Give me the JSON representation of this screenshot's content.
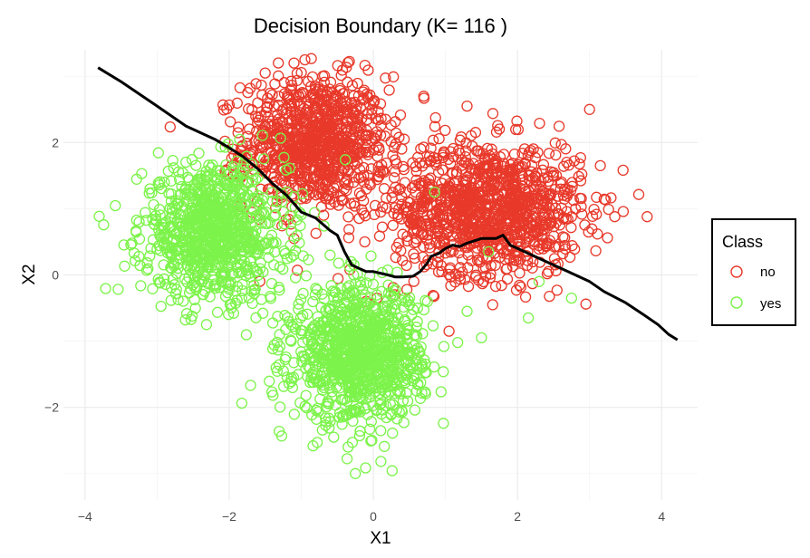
{
  "chart_data": {
    "type": "scatter",
    "title": "Decision Boundary (K= 116 )",
    "xlabel": "X1",
    "ylabel": "X2",
    "xlim": [
      -4.3,
      4.5
    ],
    "ylim": [
      -3.4,
      3.4
    ],
    "x_ticks": [
      -4,
      -2,
      0,
      2,
      4
    ],
    "y_ticks": [
      -2,
      0,
      2
    ],
    "x_tick_labels": [
      "−4",
      "−2",
      "0",
      "2",
      "4"
    ],
    "y_tick_labels": [
      "−2",
      "0",
      "2"
    ],
    "grid": true,
    "legend": {
      "title": "Class",
      "placement": "right",
      "entries": [
        {
          "label": "no",
          "color": "#E8392A"
        },
        {
          "label": "yes",
          "color": "#7CF34A"
        }
      ]
    },
    "series": [
      {
        "name": "no",
        "color": "#E8392A",
        "marker": "open-circle",
        "clusters": [
          {
            "center": [
              -0.8,
              2.0
            ],
            "sd": [
              0.5,
              0.5
            ],
            "n": 900
          },
          {
            "center": [
              1.6,
              1.0
            ],
            "sd": [
              0.65,
              0.5
            ],
            "n": 1100
          }
        ],
        "outliers": [
          [
            0.7,
            2.7
          ],
          [
            -1.5,
            3.05
          ],
          [
            -1.1,
            3.2
          ],
          [
            -0.95,
            3.25
          ],
          [
            3.0,
            2.5
          ],
          [
            3.15,
            1.65
          ],
          [
            3.35,
            0.88
          ],
          [
            3.8,
            0.88
          ],
          [
            2.75,
            0.88
          ],
          [
            0.3,
            -0.3
          ],
          [
            0.05,
            -0.35
          ],
          [
            -0.1,
            -0.4
          ],
          [
            1.05,
            -0.85
          ],
          [
            0.95,
            0.05
          ],
          [
            -1.75,
            1.65
          ],
          [
            -1.95,
            1.9
          ],
          [
            -2.15,
            1.1
          ],
          [
            -1.1,
            0.55
          ],
          [
            -1.75,
            0.55
          ],
          [
            1.3,
            2.55
          ]
        ]
      },
      {
        "name": "yes",
        "color": "#7CF34A",
        "marker": "open-circle",
        "clusters": [
          {
            "center": [
              -2.2,
              0.65
            ],
            "sd": [
              0.5,
              0.5
            ],
            "n": 900
          },
          {
            "center": [
              -0.2,
              -1.2
            ],
            "sd": [
              0.45,
              0.5
            ],
            "n": 1000
          }
        ],
        "outliers": [
          [
            -0.25,
            -3.0
          ],
          [
            -0.35,
            -2.6
          ],
          [
            -0.55,
            -2.45
          ],
          [
            -3.35,
            0.48
          ],
          [
            -3.1,
            1.3
          ],
          [
            -2.9,
            1.4
          ],
          [
            1.5,
            -0.95
          ],
          [
            2.15,
            -0.65
          ],
          [
            2.75,
            -0.35
          ],
          [
            2.3,
            -0.1
          ],
          [
            1.3,
            -0.55
          ],
          [
            -1.3,
            -0.9
          ],
          [
            -1.35,
            -1.4
          ],
          [
            0.85,
            1.25
          ],
          [
            1.6,
            0.35
          ]
        ]
      }
    ],
    "boundary": {
      "name": "decision boundary",
      "color": "#000000",
      "x": [
        -3.82,
        -3.5,
        -3.0,
        -2.6,
        -2.2,
        -2.0,
        -1.8,
        -1.6,
        -1.4,
        -1.2,
        -1.0,
        -0.8,
        -0.6,
        -0.5,
        -0.4,
        -0.3,
        -0.2,
        -0.1,
        0.0,
        0.2,
        0.3,
        0.4,
        0.55,
        0.65,
        0.75,
        0.8,
        0.9,
        1.0,
        1.1,
        1.2,
        1.3,
        1.5,
        1.7,
        1.8,
        1.9,
        2.1,
        2.3,
        2.5,
        2.7,
        3.0,
        3.2,
        3.5,
        3.75,
        3.95,
        4.1,
        4.22
      ],
      "y": [
        3.13,
        2.92,
        2.55,
        2.25,
        2.05,
        1.92,
        1.78,
        1.6,
        1.38,
        1.2,
        0.95,
        0.86,
        0.67,
        0.6,
        0.35,
        0.15,
        0.1,
        0.05,
        0.05,
        0.0,
        -0.03,
        -0.03,
        -0.02,
        0.05,
        0.18,
        0.28,
        0.32,
        0.4,
        0.45,
        0.43,
        0.48,
        0.55,
        0.55,
        0.6,
        0.45,
        0.35,
        0.25,
        0.15,
        0.05,
        -0.1,
        -0.25,
        -0.42,
        -0.6,
        -0.75,
        -0.9,
        -0.98
      ]
    }
  }
}
